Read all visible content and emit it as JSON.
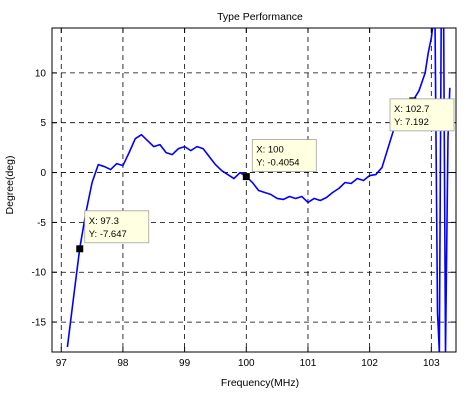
{
  "chart_data": {
    "type": "line",
    "title": "Type Performance",
    "xlabel": "Frequency(MHz)",
    "ylabel": "Degree(deg)",
    "xlim": [
      96.85,
      103.4
    ],
    "ylim": [
      -18,
      14.5
    ],
    "xticks": [
      97,
      98,
      99,
      100,
      101,
      102,
      103
    ],
    "yticks": [
      -15,
      -10,
      -5,
      0,
      5,
      10
    ],
    "grid": true,
    "grid_style": "dashed",
    "line_color": "#0000ff",
    "series": [
      {
        "x": [
          97.1,
          97.2,
          97.3,
          97.4,
          97.5,
          97.6,
          97.7,
          97.8,
          97.9,
          98.0,
          98.1,
          98.2,
          98.3,
          98.4,
          98.5,
          98.6,
          98.7,
          98.8,
          98.9,
          99.0,
          99.1,
          99.2,
          99.3,
          99.4,
          99.5,
          99.6,
          99.7,
          99.8,
          99.9,
          100.0,
          100.1,
          100.2,
          100.3,
          100.4,
          100.5,
          100.6,
          100.7,
          100.8,
          100.9,
          101.0,
          101.1,
          101.2,
          101.3,
          101.4,
          101.5,
          101.6,
          101.7,
          101.8,
          101.9,
          102.0,
          102.1,
          102.2,
          102.3,
          102.4,
          102.5,
          102.6,
          102.7,
          102.8,
          102.9,
          102.95,
          103.0,
          103.03,
          103.06,
          103.1,
          103.13,
          103.16,
          103.2,
          103.23,
          103.27,
          103.3
        ],
        "y": [
          -17.5,
          -12.5,
          -7.6,
          -4.0,
          -1.0,
          0.8,
          0.6,
          0.3,
          0.9,
          0.7,
          2.0,
          3.4,
          3.8,
          3.2,
          2.6,
          2.8,
          2.0,
          1.8,
          2.4,
          2.6,
          2.2,
          2.6,
          2.4,
          1.6,
          0.8,
          0.2,
          -0.2,
          -0.6,
          0.0,
          -0.4,
          -1.0,
          -1.8,
          -2.0,
          -2.2,
          -2.6,
          -2.7,
          -2.4,
          -2.6,
          -2.4,
          -3.0,
          -2.6,
          -2.8,
          -2.5,
          -2.0,
          -1.6,
          -1.0,
          -1.1,
          -0.6,
          -0.8,
          -0.3,
          -0.2,
          0.5,
          2.5,
          4.5,
          5.5,
          6.5,
          7.2,
          8.2,
          10.0,
          12.0,
          13.5,
          15.0,
          15.0,
          -14.0,
          -18.0,
          15.0,
          15.0,
          -18.0,
          3.5,
          8.5
        ]
      }
    ],
    "datatips": [
      {
        "x": 97.3,
        "y": -7.647,
        "label_x": "X: 97.3",
        "label_y": "Y: -7.647"
      },
      {
        "x": 100,
        "y": -0.4054,
        "label_x": "X: 100",
        "label_y": "Y: -0.4054"
      },
      {
        "x": 102.7,
        "y": 7.192,
        "label_x": "X: 102.7",
        "label_y": "Y: 7.192"
      }
    ]
  }
}
